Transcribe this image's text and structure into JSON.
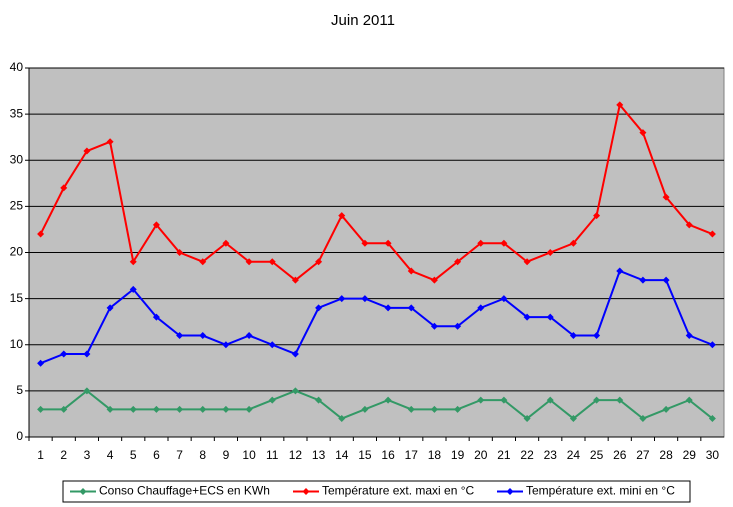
{
  "chart_data": {
    "type": "line",
    "title": "Juin 2011",
    "categories": [
      "1",
      "2",
      "3",
      "4",
      "5",
      "6",
      "7",
      "8",
      "9",
      "10",
      "11",
      "12",
      "13",
      "14",
      "15",
      "16",
      "17",
      "18",
      "19",
      "20",
      "21",
      "22",
      "23",
      "24",
      "25",
      "26",
      "27",
      "28",
      "29",
      "30"
    ],
    "series": [
      {
        "name": "Conso Chauffage+ECS en KWh",
        "color": "#339966",
        "values": [
          3,
          3,
          5,
          3,
          3,
          3,
          3,
          3,
          3,
          3,
          4,
          5,
          4,
          2,
          3,
          4,
          3,
          3,
          3,
          4,
          4,
          2,
          4,
          2,
          4,
          4,
          2,
          3,
          4,
          2
        ]
      },
      {
        "name": "Température ext. maxi en °C",
        "color": "#ff0000",
        "values": [
          22,
          27,
          31,
          32,
          19,
          23,
          20,
          19,
          21,
          19,
          19,
          17,
          19,
          24,
          21,
          21,
          18,
          17,
          19,
          21,
          21,
          19,
          20,
          21,
          24,
          36,
          33,
          26,
          23,
          22
        ]
      },
      {
        "name": "Température ext. mini en °C",
        "color": "#0000ff",
        "values": [
          8,
          9,
          9,
          14,
          16,
          13,
          11,
          11,
          10,
          11,
          10,
          9,
          14,
          15,
          15,
          14,
          14,
          12,
          12,
          14,
          15,
          13,
          13,
          11,
          11,
          18,
          17,
          17,
          11,
          10
        ]
      }
    ],
    "ylim": [
      0,
      40
    ],
    "yticks": [
      0,
      5,
      10,
      15,
      20,
      25,
      30,
      35,
      40
    ],
    "grid": true,
    "legend": "bottom",
    "plot_background": "#c0c0c0"
  }
}
